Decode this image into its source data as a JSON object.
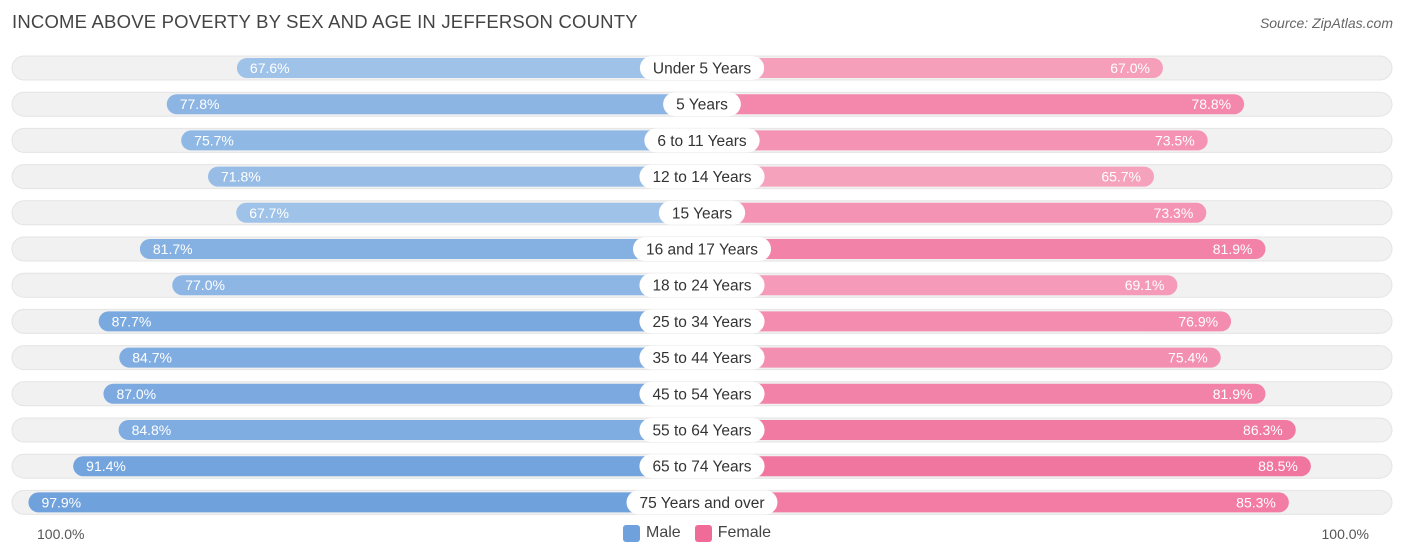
{
  "title": "INCOME ABOVE POVERTY BY SEX AND AGE IN JEFFERSON COUNTY",
  "source": "Source: ZipAtlas.com",
  "axis": {
    "left_label": "100.0%",
    "right_label": "100.0%"
  },
  "legend": {
    "male_label": "Male",
    "female_label": "Female"
  },
  "colors": {
    "male_strong": "#6fa1dc",
    "male_light": "#a9c9ec",
    "female_strong": "#f06b98",
    "female_light": "#f6a9c2",
    "track": "#f1f1f1"
  },
  "chart_data": {
    "type": "bar",
    "orientation": "horizontal-diverging",
    "title": "INCOME ABOVE POVERTY BY SEX AND AGE IN JEFFERSON COUNTY",
    "xlim": [
      0,
      100
    ],
    "categories": [
      "Under 5 Years",
      "5 Years",
      "6 to 11 Years",
      "12 to 14 Years",
      "15 Years",
      "16 and 17 Years",
      "18 to 24 Years",
      "25 to 34 Years",
      "35 to 44 Years",
      "45 to 54 Years",
      "55 to 64 Years",
      "65 to 74 Years",
      "75 Years and over"
    ],
    "series": [
      {
        "name": "Male",
        "values": [
          67.6,
          77.8,
          75.7,
          71.8,
          67.7,
          81.7,
          77.0,
          87.7,
          84.7,
          87.0,
          84.8,
          91.4,
          97.9
        ],
        "labels": [
          "67.6%",
          "77.8%",
          "75.7%",
          "71.8%",
          "67.7%",
          "81.7%",
          "77.0%",
          "87.7%",
          "84.7%",
          "87.0%",
          "84.8%",
          "91.4%",
          "97.9%"
        ]
      },
      {
        "name": "Female",
        "values": [
          67.0,
          78.8,
          73.5,
          65.7,
          73.3,
          81.9,
          69.1,
          76.9,
          75.4,
          81.9,
          86.3,
          88.5,
          85.3
        ],
        "labels": [
          "67.0%",
          "78.8%",
          "73.5%",
          "65.7%",
          "73.3%",
          "81.9%",
          "69.1%",
          "76.9%",
          "75.4%",
          "81.9%",
          "86.3%",
          "88.5%",
          "85.3%"
        ]
      }
    ]
  }
}
